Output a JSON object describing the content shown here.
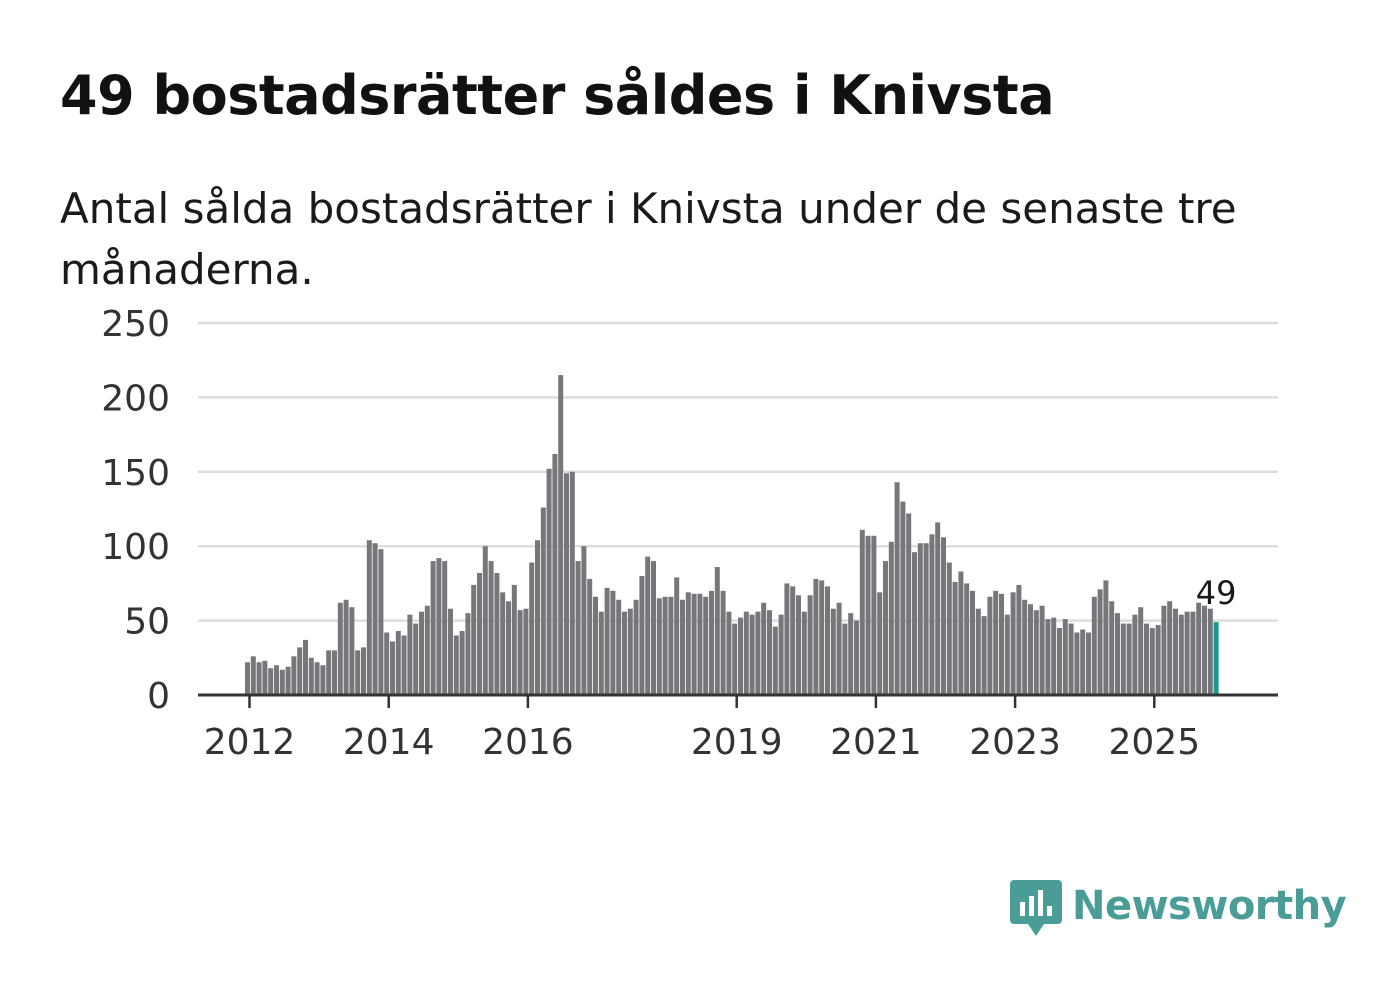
{
  "header": {
    "title": "49 bostadsrätter såldes i Knivsta",
    "subtitle": "Antal sålda bostadsrätter i Knivsta under de senaste tre månaderna."
  },
  "brand": {
    "name": "Newsworthy",
    "color": "#4a9d97",
    "icon": "newsworthy-logo-icon"
  },
  "colors": {
    "bar": "#77767b",
    "highlight": "#1a9a8f",
    "grid": "#dddddd",
    "axis": "#333333"
  },
  "chart_data": {
    "type": "bar",
    "title": "49 bostadsrätter såldes i Knivsta",
    "xlabel": "",
    "ylabel": "",
    "ylim": [
      0,
      250
    ],
    "yticks": [
      0,
      50,
      100,
      150,
      200,
      250
    ],
    "x_start": "2012-01",
    "x_end": "2026-03",
    "xtick_labels": [
      {
        "label": "2012",
        "index": 0
      },
      {
        "label": "2014",
        "index": 24
      },
      {
        "label": "2016",
        "index": 48
      },
      {
        "label": "2019",
        "index": 84
      },
      {
        "label": "2021",
        "index": 108
      },
      {
        "label": "2023",
        "index": 132
      },
      {
        "label": "2025",
        "index": 156
      }
    ],
    "values": [
      22,
      26,
      22,
      23,
      18,
      20,
      17,
      19,
      26,
      32,
      37,
      25,
      22,
      20,
      30,
      30,
      62,
      64,
      59,
      30,
      32,
      104,
      102,
      98,
      42,
      36,
      43,
      40,
      54,
      48,
      56,
      60,
      90,
      92,
      90,
      58,
      40,
      43,
      55,
      74,
      82,
      100,
      90,
      82,
      69,
      63,
      74,
      57,
      58,
      89,
      104,
      126,
      152,
      162,
      215,
      149,
      150,
      90,
      100,
      78,
      66,
      56,
      72,
      70,
      64,
      56,
      58,
      64,
      80,
      93,
      90,
      65,
      66,
      66,
      79,
      64,
      69,
      68,
      68,
      66,
      70,
      86,
      70,
      56,
      48,
      52,
      56,
      54,
      56,
      62,
      57,
      46,
      54,
      75,
      73,
      67,
      56,
      67,
      78,
      77,
      73,
      58,
      62,
      48,
      55,
      50,
      111,
      107,
      107,
      69,
      90,
      103,
      143,
      130,
      122,
      96,
      102,
      102,
      108,
      116,
      106,
      89,
      76,
      83,
      75,
      70,
      58,
      53,
      66,
      70,
      68,
      54,
      69,
      74,
      64,
      61,
      57,
      60,
      51,
      52,
      45,
      51,
      48,
      42,
      44,
      42,
      66,
      71,
      77,
      63,
      55,
      48,
      48,
      54,
      59,
      48,
      45,
      47,
      60,
      63,
      58,
      54,
      56,
      56,
      62,
      60,
      58,
      49
    ],
    "highlight_last": true,
    "annotation": {
      "label": "49",
      "value": 49
    }
  }
}
